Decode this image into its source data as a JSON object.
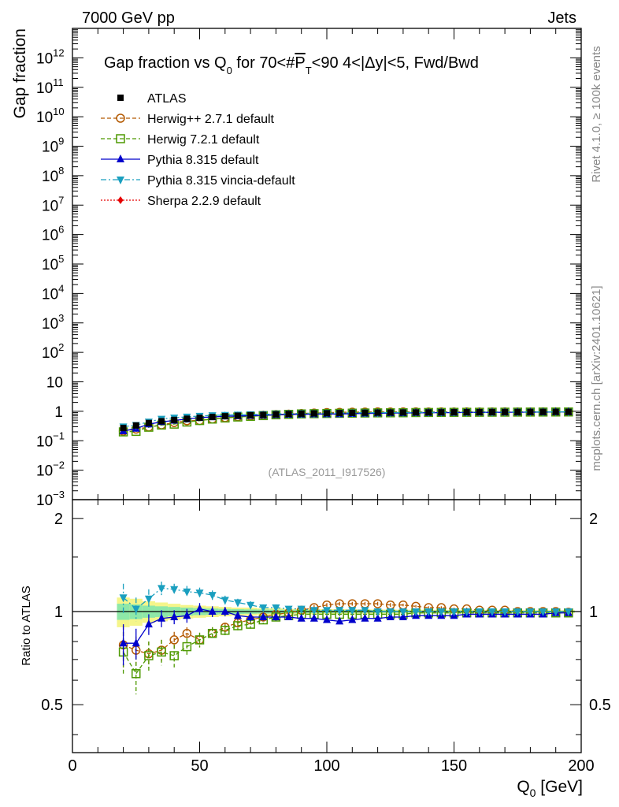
{
  "header": {
    "left": "7000 GeV pp",
    "right": "Jets"
  },
  "side": {
    "rivet": "Rivet 4.1.0, ≥ 100k events",
    "mcplots": "mcplots.cern.ch [arXiv:2401.10621]"
  },
  "chart_data": {
    "type": "scatter",
    "title_parts": {
      "a": "Gap fraction vs Q",
      "sub0": "0",
      "b": " for 70<#",
      "p": "P",
      "sub1": "T",
      "c": "<90  4<|Δy|<5, Fwd/Bwd"
    },
    "ylabel": "Gap fraction",
    "ratio_ylabel": "Ratio to ATLAS",
    "xlabel_main": "Q",
    "xlabel_sub": "0",
    "xlabel_unit": " [GeV]",
    "watermark": "(ATLAS_2011_I917526)",
    "xlim": [
      0,
      200
    ],
    "ylim": [
      0.001,
      10000000000000.0
    ],
    "ratio_ylim": [
      0.35,
      2.3
    ],
    "x_ticks": [
      0,
      50,
      100,
      150,
      200
    ],
    "x_tick_labels": [
      "0",
      "50",
      "100",
      "150",
      "200"
    ],
    "y_tick_labels": [
      {
        "v": 0.001,
        "base": "10",
        "exp": "−3"
      },
      {
        "v": 0.01,
        "base": "10",
        "exp": "−2"
      },
      {
        "v": 0.1,
        "base": "10",
        "exp": "−1"
      },
      {
        "v": 1,
        "base": "1",
        "exp": ""
      },
      {
        "v": 10,
        "base": "10",
        "exp": ""
      },
      {
        "v": 100,
        "base": "10",
        "exp": "2"
      },
      {
        "v": 1000,
        "base": "10",
        "exp": "3"
      },
      {
        "v": 10000,
        "base": "10",
        "exp": "4"
      },
      {
        "v": 100000,
        "base": "10",
        "exp": "5"
      },
      {
        "v": 1000000,
        "base": "10",
        "exp": "6"
      },
      {
        "v": 10000000,
        "base": "10",
        "exp": "7"
      },
      {
        "v": 100000000,
        "base": "10",
        "exp": "8"
      },
      {
        "v": 1000000000,
        "base": "10",
        "exp": "9"
      },
      {
        "v": 10000000000,
        "base": "10",
        "exp": "10"
      },
      {
        "v": 100000000000,
        "base": "10",
        "exp": "11"
      },
      {
        "v": 1000000000000,
        "base": "10",
        "exp": "12"
      }
    ],
    "ratio_y_ticks": [
      0.5,
      1,
      2
    ],
    "ratio_y_tick_labels": [
      "0.5",
      "1",
      "2"
    ],
    "x": [
      20,
      25,
      30,
      35,
      40,
      45,
      50,
      55,
      60,
      65,
      70,
      75,
      80,
      85,
      90,
      95,
      100,
      105,
      110,
      115,
      120,
      125,
      130,
      135,
      140,
      145,
      150,
      155,
      160,
      165,
      170,
      175,
      180,
      185,
      190,
      195
    ],
    "data": {
      "name": "ATLAS",
      "values": [
        0.27,
        0.33,
        0.4,
        0.46,
        0.51,
        0.56,
        0.6,
        0.64,
        0.68,
        0.71,
        0.74,
        0.76,
        0.79,
        0.81,
        0.83,
        0.845,
        0.86,
        0.87,
        0.88,
        0.89,
        0.9,
        0.905,
        0.91,
        0.915,
        0.92,
        0.925,
        0.93,
        0.933,
        0.936,
        0.94,
        0.943,
        0.946,
        0.95,
        0.952,
        0.955,
        0.958
      ],
      "band_outer": [
        0.11,
        0.1,
        0.08,
        0.07,
        0.06,
        0.05,
        0.045,
        0.04,
        0.035,
        0.03,
        0.03,
        0.025,
        0.025,
        0.02,
        0.02,
        0.02,
        0.018,
        0.018,
        0.016,
        0.016,
        0.015,
        0.015,
        0.014,
        0.014,
        0.013,
        0.013,
        0.012,
        0.012,
        0.012,
        0.011,
        0.011,
        0.011,
        0.01,
        0.01,
        0.01,
        0.01
      ],
      "band_inner": [
        0.06,
        0.055,
        0.045,
        0.04,
        0.035,
        0.03,
        0.026,
        0.023,
        0.02,
        0.018,
        0.016,
        0.015,
        0.014,
        0.013,
        0.012,
        0.011,
        0.011,
        0.01,
        0.01,
        0.009,
        0.009,
        0.009,
        0.008,
        0.008,
        0.008,
        0.008,
        0.007,
        0.007,
        0.007,
        0.007,
        0.006,
        0.006,
        0.006,
        0.006,
        0.006,
        0.006
      ]
    },
    "series": [
      {
        "name": "Herwig++ 2.7.1 default",
        "color": "#b35900",
        "marker": "circle-open",
        "dash": "5,3",
        "ratio": [
          0.78,
          0.75,
          0.73,
          0.75,
          0.81,
          0.85,
          0.81,
          0.85,
          0.89,
          0.92,
          0.94,
          0.96,
          0.98,
          0.99,
          1.01,
          1.03,
          1.05,
          1.06,
          1.06,
          1.06,
          1.06,
          1.05,
          1.05,
          1.04,
          1.03,
          1.03,
          1.02,
          1.02,
          1.01,
          1.01,
          1.01,
          1.0,
          1.0,
          1.0,
          1.0,
          0.995
        ],
        "err": [
          0.12,
          0.08,
          0.07,
          0.06,
          0.05,
          0.04,
          0.04,
          0.04,
          0.03,
          0.03,
          0.03,
          0.025,
          0.02,
          0.02,
          0.02,
          0.02,
          0.015,
          0.015,
          0.015,
          0.015,
          0.015,
          0.015,
          0.01,
          0.01,
          0.01,
          0.01,
          0.01,
          0.01,
          0.01,
          0.01,
          0.01,
          0.01,
          0.01,
          0.01,
          0.01,
          0.01
        ]
      },
      {
        "name": "Herwig 7.2.1 default",
        "color": "#4d9900",
        "marker": "square-open",
        "dash": "5,3",
        "ratio": [
          0.74,
          0.63,
          0.72,
          0.74,
          0.72,
          0.77,
          0.81,
          0.85,
          0.87,
          0.9,
          0.91,
          0.94,
          0.96,
          0.97,
          0.98,
          0.98,
          0.98,
          0.98,
          0.98,
          0.98,
          0.98,
          0.98,
          0.98,
          0.99,
          0.99,
          0.99,
          0.99,
          0.99,
          0.99,
          0.99,
          0.99,
          0.99,
          0.99,
          0.99,
          0.99,
          0.99
        ],
        "err": [
          0.12,
          0.09,
          0.08,
          0.07,
          0.06,
          0.05,
          0.045,
          0.04,
          0.035,
          0.03,
          0.03,
          0.025,
          0.025,
          0.02,
          0.02,
          0.02,
          0.015,
          0.015,
          0.015,
          0.015,
          0.015,
          0.015,
          0.01,
          0.01,
          0.01,
          0.01,
          0.01,
          0.01,
          0.01,
          0.01,
          0.01,
          0.01,
          0.01,
          0.01,
          0.01,
          0.01
        ]
      },
      {
        "name": "Pythia 8.315 default",
        "color": "#0000cc",
        "marker": "triangle-up",
        "dash": "",
        "ratio": [
          0.79,
          0.79,
          0.91,
          0.95,
          0.96,
          0.97,
          1.02,
          1.0,
          1.0,
          0.97,
          0.96,
          0.96,
          0.96,
          0.96,
          0.95,
          0.95,
          0.94,
          0.93,
          0.94,
          0.95,
          0.95,
          0.96,
          0.96,
          0.97,
          0.97,
          0.97,
          0.97,
          0.98,
          0.98,
          0.98,
          0.98,
          0.98,
          0.98,
          0.98,
          0.99,
          0.99
        ],
        "err": [
          0.12,
          0.09,
          0.07,
          0.06,
          0.05,
          0.05,
          0.045,
          0.04,
          0.035,
          0.03,
          0.03,
          0.025,
          0.025,
          0.02,
          0.02,
          0.02,
          0.015,
          0.015,
          0.015,
          0.015,
          0.015,
          0.015,
          0.01,
          0.01,
          0.01,
          0.01,
          0.01,
          0.01,
          0.01,
          0.01,
          0.01,
          0.01,
          0.01,
          0.01,
          0.01,
          0.01
        ]
      },
      {
        "name": "Pythia 8.315 vincia-default",
        "color": "#1a9fbf",
        "marker": "triangle-down",
        "dash": "7,3,2,3",
        "ratio": [
          1.11,
          1.02,
          1.1,
          1.19,
          1.18,
          1.16,
          1.15,
          1.13,
          1.09,
          1.07,
          1.05,
          1.03,
          1.03,
          1.02,
          1.02,
          1.01,
          1.01,
          1.01,
          1.01,
          1.01,
          1.0,
          1.0,
          1.0,
          1.0,
          1.0,
          1.0,
          1.0,
          1.0,
          1.0,
          1.0,
          1.0,
          1.0,
          1.0,
          1.0,
          1.0,
          1.0
        ],
        "err": [
          0.12,
          0.09,
          0.08,
          0.06,
          0.05,
          0.05,
          0.045,
          0.04,
          0.035,
          0.03,
          0.03,
          0.025,
          0.025,
          0.02,
          0.02,
          0.02,
          0.015,
          0.015,
          0.015,
          0.015,
          0.015,
          0.015,
          0.01,
          0.01,
          0.01,
          0.01,
          0.01,
          0.01,
          0.01,
          0.01,
          0.01,
          0.01,
          0.01,
          0.01,
          0.01,
          0.01
        ]
      },
      {
        "name": "Sherpa 2.2.9 default",
        "color": "#e60000",
        "marker": "diamond",
        "dash": "2,2",
        "ratio": [],
        "err": []
      }
    ]
  }
}
